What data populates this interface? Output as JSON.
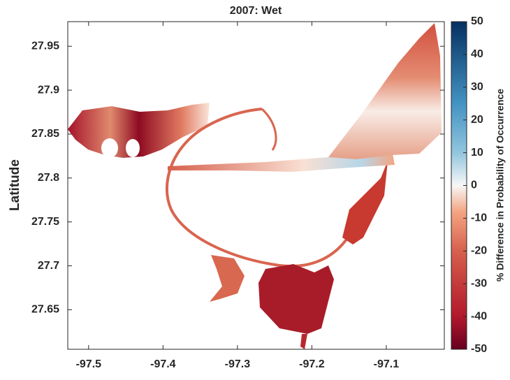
{
  "chart_data": {
    "type": "map",
    "title": "2007: Wet",
    "ylabel": "Latitude",
    "xlim": [
      -97.528,
      -97.022
    ],
    "xticks": [
      -97.5,
      -97.4,
      -97.3,
      -97.2,
      -97.1
    ],
    "ylim": [
      27.605,
      27.978
    ],
    "yticks": [
      27.65,
      27.7,
      27.75,
      27.8,
      27.85,
      27.9,
      27.95
    ],
    "colorbar": {
      "label": "% Difference in Probability of Occurrence",
      "clim": [
        -50,
        50
      ],
      "ticks": [
        -50,
        -40,
        -30,
        -20,
        -10,
        0,
        10,
        20,
        30,
        40,
        50
      ]
    }
  }
}
